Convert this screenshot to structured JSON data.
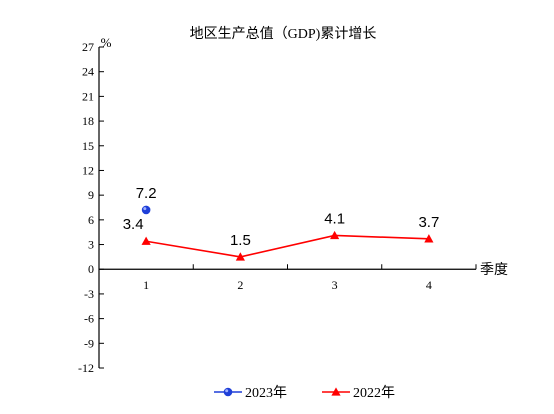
{
  "chart_data": {
    "type": "line",
    "title": "地区生产总值（GDP)累计增长",
    "ylabel": "%",
    "xlabel": "季度",
    "categories": [
      "1",
      "2",
      "3",
      "4"
    ],
    "yticks": [
      27,
      24,
      21,
      18,
      15,
      12,
      9,
      6,
      3,
      0,
      -3,
      -6,
      -9,
      -12
    ],
    "ylim": [
      -12,
      27
    ],
    "grid": false,
    "legend_position": "bottom",
    "series": [
      {
        "name": "2023年",
        "color": "#1f3fd8",
        "marker": "circle",
        "values": [
          7.2,
          null,
          null,
          null
        ],
        "labels": [
          "7.2",
          null,
          null,
          null
        ]
      },
      {
        "name": "2022年",
        "color": "#ff0000",
        "marker": "triangle",
        "values": [
          3.4,
          1.5,
          4.1,
          3.7
        ],
        "labels": [
          "3.4",
          "1.5",
          "4.1",
          "3.7"
        ]
      }
    ]
  }
}
